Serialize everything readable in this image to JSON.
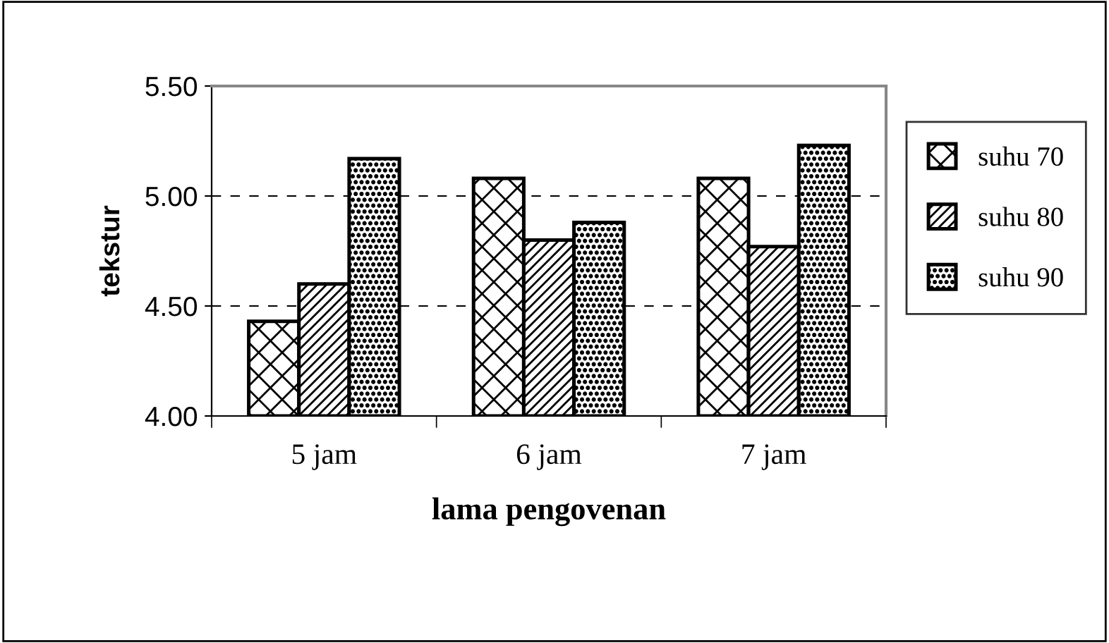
{
  "chart_data": {
    "type": "bar",
    "xlabel": "lama pengovenan",
    "ylabel": "tekstur",
    "categories": [
      "5 jam",
      "6 jam",
      "7 jam"
    ],
    "series": [
      {
        "name": "suhu 70",
        "color": "#000000",
        "values": [
          4.43,
          5.08,
          5.08
        ]
      },
      {
        "name": "suhu 80",
        "color": "#000000",
        "values": [
          4.6,
          4.8,
          4.77
        ]
      },
      {
        "name": "suhu 90",
        "color": "#000000",
        "values": [
          5.17,
          4.88,
          5.23
        ]
      }
    ],
    "ylim": [
      4.0,
      5.5
    ],
    "yticks": [
      {
        "value": 4.0,
        "label": "4.00"
      },
      {
        "value": 4.5,
        "label": "4.50"
      },
      {
        "value": 5.0,
        "label": "5.00"
      },
      {
        "value": 5.5,
        "label": "5.50"
      }
    ],
    "grid": "y",
    "legend": "right"
  }
}
